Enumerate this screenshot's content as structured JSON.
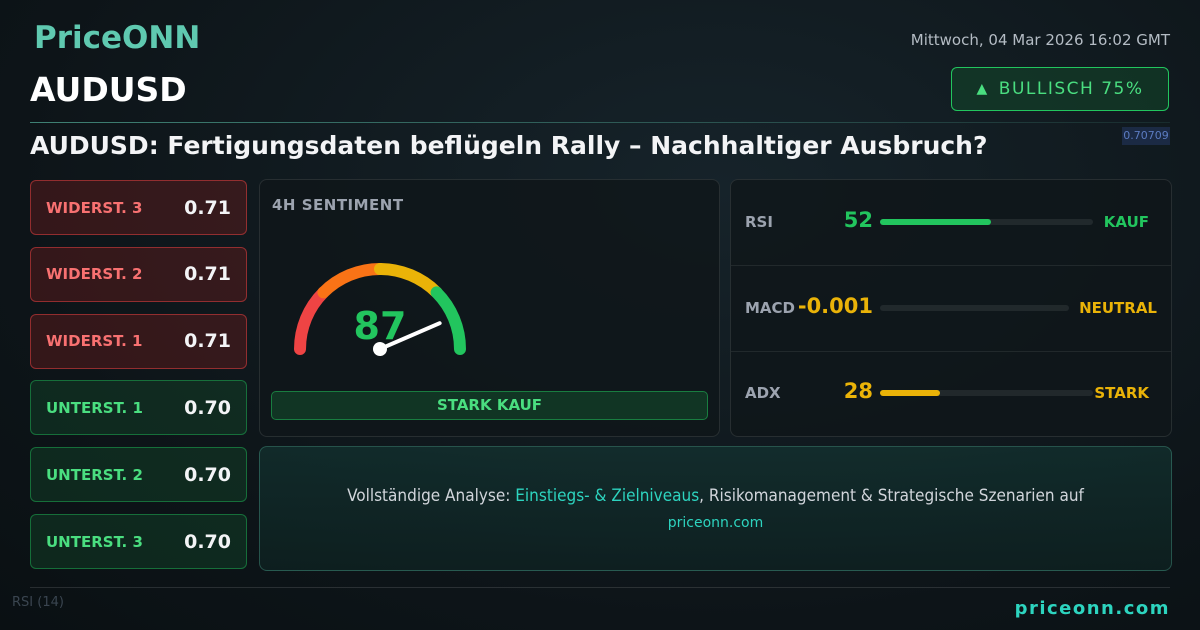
{
  "header": {
    "brand": "PriceONN",
    "datetime": "Mittwoch, 04 Mar 2026 16:02 GMT",
    "symbol": "AUDUSD",
    "badge": "BULLISCH 75%",
    "headline": "AUDUSD: Fertigungsdaten beflügeln Rally – Nachhaltiger Ausbruch?"
  },
  "background_chart": {
    "price_label": "0.70709",
    "indicator_label": "RSI (14)"
  },
  "levels": [
    {
      "label": "WIDERST. 3",
      "value": "0.71",
      "kind": "resistance"
    },
    {
      "label": "WIDERST. 2",
      "value": "0.71",
      "kind": "resistance"
    },
    {
      "label": "WIDERST. 1",
      "value": "0.71",
      "kind": "resistance"
    },
    {
      "label": "UNTERST. 1",
      "value": "0.70",
      "kind": "support"
    },
    {
      "label": "UNTERST. 2",
      "value": "0.70",
      "kind": "support"
    },
    {
      "label": "UNTERST. 3",
      "value": "0.70",
      "kind": "support"
    }
  ],
  "sentiment": {
    "title": "4H SENTIMENT",
    "score": 87,
    "range": [
      0,
      100
    ],
    "label": "STARK KAUF"
  },
  "indicators": [
    {
      "name": "RSI",
      "value": 52,
      "range": [
        0,
        100
      ],
      "signal": "KAUF",
      "color": "#22c55e"
    },
    {
      "name": "MACD",
      "value": -0.001,
      "signal": "NEUTRAL",
      "color": "#eab308"
    },
    {
      "name": "ADX",
      "value": 28,
      "range": [
        0,
        100
      ],
      "signal": "STARK",
      "color": "#eab308"
    }
  ],
  "cta": {
    "intro": "Vollständige Analyse: ",
    "highlight": "Einstiegs- & Zielniveaus",
    "rest": ", Risikomanagement & Strategische Szenarien auf",
    "link": "priceonn.com"
  },
  "footer": {
    "site": "priceonn.com"
  }
}
